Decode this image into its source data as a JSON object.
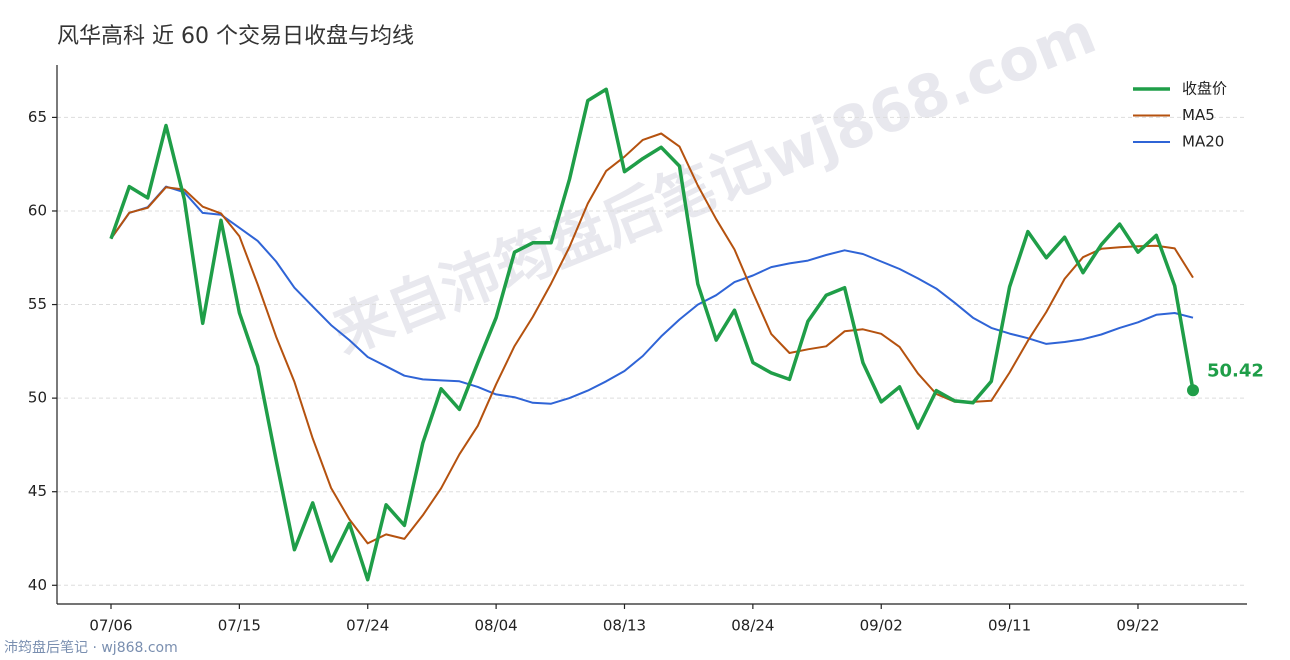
{
  "chart_data": {
    "type": "line",
    "title": "风华高科 近 60 个交易日收盘与均线",
    "watermark": "来自沛筠盘后笔记wj868.com",
    "source": "沛筠盘后笔记 · wj868.com",
    "categories": [
      "07/06",
      null,
      null,
      null,
      null,
      null,
      null,
      "07/15",
      null,
      null,
      null,
      null,
      null,
      null,
      "07/24",
      null,
      null,
      null,
      null,
      null,
      null,
      "08/04",
      null,
      null,
      null,
      null,
      null,
      null,
      "08/13",
      null,
      null,
      null,
      null,
      null,
      null,
      "08/24",
      null,
      null,
      null,
      null,
      null,
      null,
      "09/02",
      null,
      null,
      null,
      null,
      null,
      null,
      "09/11",
      null,
      null,
      null,
      null,
      null,
      null,
      "09/22",
      null,
      null,
      null
    ],
    "series": [
      {
        "name": "收盘价",
        "color": "#1f9e48",
        "values": [
          58.52,
          61.3,
          60.7,
          64.57,
          60.6,
          54.0,
          59.5,
          54.56,
          51.7,
          46.7,
          41.9,
          44.4,
          41.3,
          43.3,
          40.3,
          44.3,
          43.2,
          47.6,
          50.5,
          49.4,
          51.9,
          54.3,
          57.8,
          58.3,
          58.3,
          61.7,
          65.9,
          66.5,
          62.1,
          62.8,
          63.4,
          62.4,
          56.1,
          53.1,
          54.7,
          51.9,
          51.35,
          51.0,
          54.1,
          55.5,
          55.9,
          51.9,
          49.8,
          50.6,
          48.4,
          50.4,
          49.85,
          49.75,
          50.9,
          55.95,
          58.9,
          57.5,
          58.6,
          56.7,
          58.2,
          59.3,
          57.8,
          58.7,
          56.0,
          50.42
        ]
      },
      {
        "name": "MA5",
        "color": "#b5520f",
        "values": [
          58.52,
          59.91,
          60.17,
          61.27,
          61.14,
          60.23,
          59.87,
          58.65,
          56.07,
          53.29,
          50.87,
          47.85,
          45.2,
          43.52,
          42.24,
          42.72,
          42.48,
          43.74,
          45.18,
          47.0,
          48.52,
          50.74,
          52.78,
          54.34,
          56.12,
          58.08,
          60.4,
          62.14,
          62.9,
          63.8,
          64.14,
          63.44,
          61.36,
          59.56,
          57.94,
          55.64,
          53.43,
          52.41,
          52.61,
          52.77,
          53.57,
          53.68,
          53.44,
          52.74,
          51.32,
          50.22,
          49.81,
          49.8,
          49.86,
          51.37,
          53.07,
          54.6,
          56.37,
          57.53,
          57.98,
          58.06,
          58.12,
          58.14,
          58.0,
          56.44
        ]
      },
      {
        "name": "MA20",
        "color": "#2f64d6",
        "values": [
          58.52,
          59.9,
          60.2,
          61.3,
          61.0,
          59.9,
          59.8,
          59.1,
          58.4,
          57.3,
          55.9,
          54.9,
          53.9,
          53.1,
          52.2,
          51.7,
          51.2,
          51.0,
          50.95,
          50.9,
          50.6,
          50.2,
          50.05,
          49.75,
          49.7,
          50.0,
          50.4,
          50.9,
          51.45,
          52.25,
          53.3,
          54.2,
          55.0,
          55.5,
          56.2,
          56.55,
          57.0,
          57.2,
          57.35,
          57.65,
          57.9,
          57.7,
          57.3,
          56.9,
          56.4,
          55.85,
          55.1,
          54.3,
          53.75,
          53.45,
          53.2,
          52.9,
          53.0,
          53.15,
          53.4,
          53.75,
          54.05,
          54.45,
          54.55,
          54.3
        ]
      }
    ],
    "ylim": [
      39,
      67.8
    ],
    "yticks": [
      40,
      45,
      50,
      55,
      60,
      65
    ],
    "grid": true,
    "legend": "upper right"
  }
}
